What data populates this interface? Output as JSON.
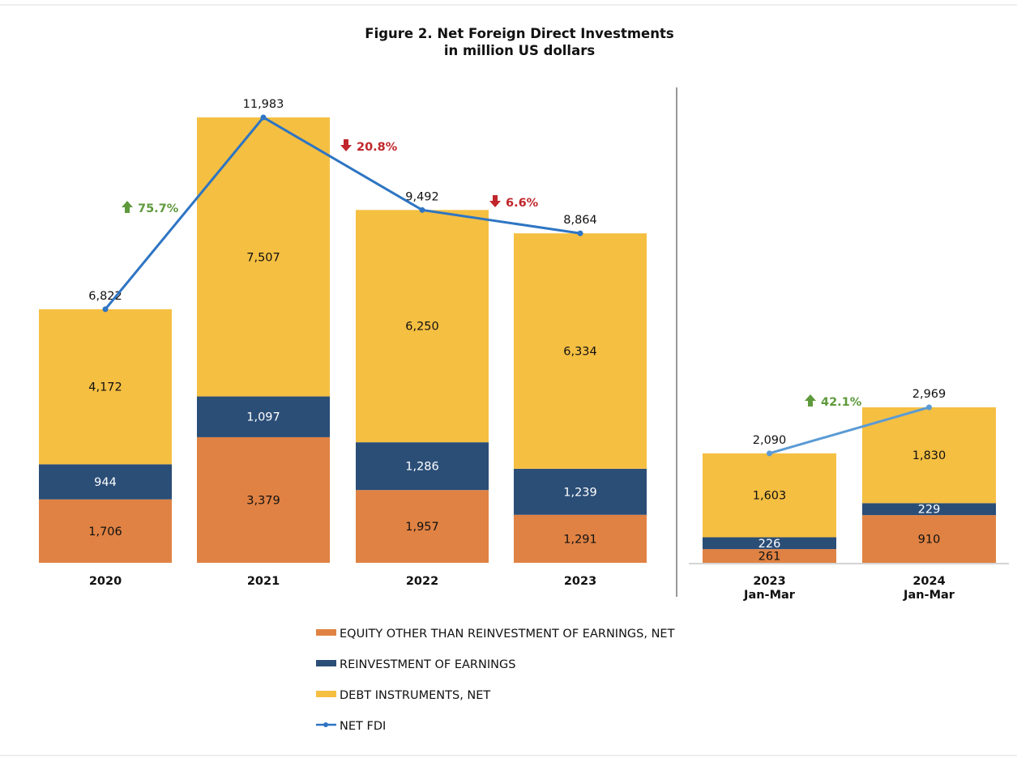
{
  "chart_data": [
    {
      "type": "bar",
      "stacked": true,
      "title": "Figure 2. Net Foreign Direct Investments",
      "subtitle": "in million US dollars",
      "categories": [
        "2020",
        "2021",
        "2022",
        "2023"
      ],
      "series": [
        {
          "name": "EQUITY OTHER THAN REINVESTMENT OF EARNINGS, NET",
          "values": [
            1706,
            3379,
            1957,
            1291
          ]
        },
        {
          "name": "REINVESTMENT OF EARNINGS",
          "values": [
            944,
            1097,
            1286,
            1239
          ]
        },
        {
          "name": "DEBT INSTRUMENTS, NET",
          "values": [
            4172,
            7507,
            6250,
            6334
          ]
        },
        {
          "name": "NET FDI",
          "type": "line",
          "values": [
            6822,
            11983,
            9492,
            8864
          ],
          "labels": [
            "6,822",
            "11,983",
            "9,492",
            "8,864"
          ]
        }
      ],
      "value_labels": [
        [
          "1,706",
          "3,379",
          "1,957",
          "1,291"
        ],
        [
          "944",
          "1,097",
          "1,286",
          "1,239"
        ],
        [
          "4,172",
          "7,507",
          "6,250",
          "6,334"
        ]
      ],
      "annotations": [
        {
          "text": "75.7%",
          "direction": "up",
          "color": "#5E9A3C"
        },
        {
          "text": "20.8%",
          "direction": "down",
          "color": "#C0262B"
        },
        {
          "text": "6.6%",
          "direction": "down",
          "color": "#C0262B"
        }
      ],
      "ylim": [
        0,
        12000
      ],
      "grid": false
    },
    {
      "type": "bar",
      "stacked": true,
      "categories": [
        [
          "2023",
          "Jan-Mar"
        ],
        [
          "2024",
          "Jan-Mar"
        ]
      ],
      "series": [
        {
          "name": "EQUITY OTHER THAN REINVESTMENT OF EARNINGS, NET",
          "values": [
            261,
            910
          ]
        },
        {
          "name": "REINVESTMENT OF EARNINGS",
          "values": [
            226,
            229
          ]
        },
        {
          "name": "DEBT INSTRUMENTS, NET",
          "values": [
            1603,
            1830
          ]
        },
        {
          "name": "NET FDI",
          "type": "line",
          "values": [
            2090,
            2969
          ],
          "labels": [
            "2,090",
            "2,969"
          ]
        }
      ],
      "value_labels": [
        [
          "261",
          "910"
        ],
        [
          "226",
          "229"
        ],
        [
          "1,603",
          "1,830"
        ]
      ],
      "annotations": [
        {
          "text": "42.1%",
          "direction": "up",
          "color": "#5E9A3C"
        }
      ],
      "ylim": [
        0,
        3000
      ],
      "grid": false
    }
  ],
  "legend": {
    "placement": "bottom",
    "items": [
      {
        "label": "EQUITY OTHER THAN REINVESTMENT OF EARNINGS, NET",
        "color": "#E08243",
        "kind": "bar"
      },
      {
        "label": "REINVESTMENT OF EARNINGS",
        "color": "#2B4E77",
        "kind": "bar"
      },
      {
        "label": "DEBT INSTRUMENTS, NET",
        "color": "#F5BF42",
        "kind": "bar"
      },
      {
        "label": "NET FDI",
        "color": "#2E75C3",
        "kind": "line"
      }
    ]
  },
  "colors": {
    "equity": "#E08243",
    "reinvest": "#2B4E77",
    "debt": "#F5BF42",
    "line": "#2E75C3",
    "line_right": "#5B9BD5",
    "up": "#5E9A3C",
    "down": "#C0262B"
  }
}
